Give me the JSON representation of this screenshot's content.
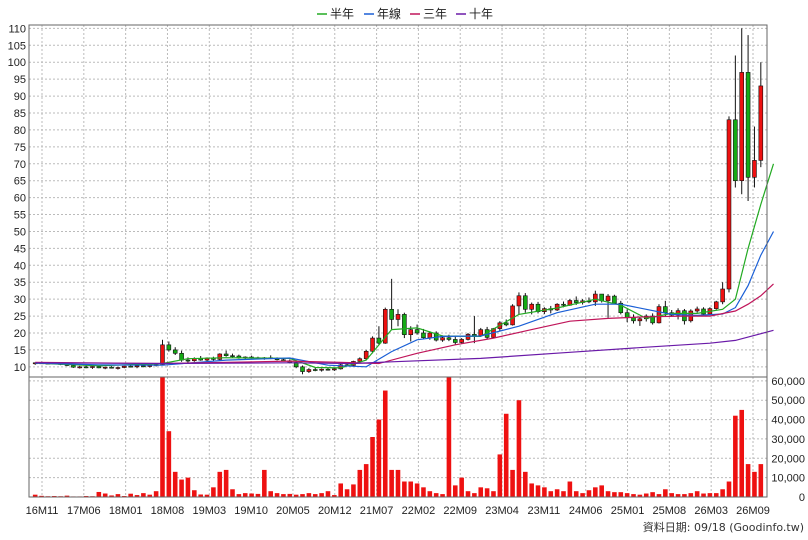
{
  "chart_data": {
    "type": "candlestick",
    "title": "",
    "legend": [
      "半年",
      "年線",
      "三年",
      "十年"
    ],
    "colors": {
      "half_year": "#22aa22",
      "year_line": "#1a5fd6",
      "three_year": "#c0155a",
      "ten_year": "#6a1aa8",
      "up": "#ee1111",
      "down": "#15aa15",
      "volume": "#ee1111",
      "grid": "#bbbbbb"
    },
    "x_ticks": [
      "16M11",
      "17M06",
      "18M01",
      "18M08",
      "19M03",
      "19M10",
      "20M05",
      "20M12",
      "21M07",
      "22M02",
      "22M09",
      "23M04",
      "23M11",
      "24M06",
      "25M01",
      "25M08",
      "26M03",
      "26M09"
    ],
    "price_axis": {
      "ticks": [
        10,
        15,
        20,
        25,
        30,
        35,
        40,
        45,
        50,
        55,
        60,
        65,
        70,
        75,
        80,
        85,
        90,
        95,
        100,
        105,
        110
      ],
      "range": [
        7,
        111
      ]
    },
    "volume_axis": {
      "ticks": [
        0,
        10000,
        20000,
        30000,
        40000,
        50000,
        60000
      ],
      "labels": [
        "0",
        "10,000",
        "20,000",
        "30,000",
        "40,000",
        "50,000",
        "60,000"
      ],
      "range": [
        0,
        62000
      ]
    },
    "candles": [
      [
        11.0,
        11.3,
        10.6,
        11.2
      ],
      [
        11.2,
        11.5,
        10.9,
        11.0
      ],
      [
        11.0,
        11.3,
        10.7,
        11.1
      ],
      [
        11.1,
        11.4,
        10.8,
        10.9
      ],
      [
        10.9,
        11.2,
        10.5,
        11.0
      ],
      [
        11.0,
        11.2,
        10.2,
        10.4
      ],
      [
        10.4,
        10.7,
        9.7,
        9.9
      ],
      [
        9.9,
        10.3,
        9.5,
        10.0
      ],
      [
        10.0,
        10.4,
        9.6,
        9.8
      ],
      [
        9.8,
        10.2,
        9.4,
        10.1
      ],
      [
        10.1,
        10.4,
        9.6,
        9.7
      ],
      [
        9.7,
        10.0,
        9.3,
        9.9
      ],
      [
        9.9,
        10.2,
        9.5,
        9.6
      ],
      [
        9.6,
        10.0,
        9.2,
        9.8
      ],
      [
        9.8,
        10.3,
        9.6,
        10.2
      ],
      [
        10.2,
        10.5,
        9.8,
        10.0
      ],
      [
        10.0,
        10.4,
        9.6,
        10.3
      ],
      [
        10.3,
        10.6,
        9.9,
        10.1
      ],
      [
        10.1,
        10.5,
        9.8,
        10.4
      ],
      [
        10.4,
        10.9,
        10.1,
        10.7
      ],
      [
        10.7,
        18.0,
        10.5,
        16.5
      ],
      [
        16.5,
        17.5,
        14.5,
        15.0
      ],
      [
        15.0,
        15.8,
        13.5,
        14.0
      ],
      [
        14.0,
        14.8,
        11.5,
        12.0
      ],
      [
        12.0,
        12.8,
        11.2,
        11.8
      ],
      [
        11.8,
        12.8,
        11.5,
        12.5
      ],
      [
        12.5,
        13.2,
        11.8,
        12.0
      ],
      [
        12.0,
        12.8,
        11.5,
        12.6
      ],
      [
        12.6,
        13.0,
        11.8,
        12.2
      ],
      [
        12.2,
        14.0,
        12.0,
        13.8
      ],
      [
        13.8,
        14.8,
        13.0,
        13.3
      ],
      [
        13.3,
        13.9,
        12.7,
        13.2
      ],
      [
        13.2,
        13.6,
        12.4,
        12.6
      ],
      [
        12.6,
        13.1,
        12.2,
        12.9
      ],
      [
        12.9,
        13.3,
        12.4,
        12.7
      ],
      [
        12.7,
        13.0,
        12.2,
        12.5
      ],
      [
        12.5,
        12.9,
        12.1,
        12.7
      ],
      [
        12.7,
        13.4,
        12.3,
        12.4
      ],
      [
        12.4,
        12.8,
        11.9,
        12.1
      ],
      [
        12.1,
        12.5,
        11.6,
        11.8
      ],
      [
        11.8,
        12.2,
        11.0,
        11.3
      ],
      [
        11.3,
        11.6,
        9.6,
        10.0
      ],
      [
        10.0,
        10.4,
        7.8,
        8.6
      ],
      [
        8.6,
        9.6,
        8.2,
        9.2
      ],
      [
        9.2,
        9.7,
        8.7,
        9.0
      ],
      [
        9.0,
        9.5,
        8.6,
        9.3
      ],
      [
        9.3,
        9.7,
        8.9,
        9.1
      ],
      [
        9.1,
        9.6,
        8.8,
        9.4
      ],
      [
        9.4,
        11.0,
        9.2,
        10.6
      ],
      [
        10.6,
        11.4,
        10.1,
        10.4
      ],
      [
        10.4,
        11.8,
        10.2,
        11.6
      ],
      [
        11.6,
        12.8,
        11.2,
        12.4
      ],
      [
        12.4,
        15.0,
        12.0,
        14.6
      ],
      [
        14.6,
        19.0,
        14.0,
        18.5
      ],
      [
        18.5,
        22.0,
        16.5,
        17.0
      ],
      [
        17.0,
        27.5,
        16.8,
        27.0
      ],
      [
        27.0,
        36.0,
        21.0,
        24.0
      ],
      [
        24.0,
        27.0,
        22.0,
        25.5
      ],
      [
        25.5,
        26.0,
        18.5,
        19.5
      ],
      [
        19.5,
        22.0,
        17.5,
        21.0
      ],
      [
        21.0,
        22.5,
        19.5,
        20.0
      ],
      [
        20.0,
        21.2,
        18.2,
        18.6
      ],
      [
        18.6,
        20.5,
        18.0,
        20.0
      ],
      [
        20.0,
        20.5,
        17.5,
        17.9
      ],
      [
        17.9,
        19.3,
        17.4,
        18.6
      ],
      [
        18.6,
        19.5,
        17.6,
        18.1
      ],
      [
        18.1,
        19.0,
        16.6,
        17.2
      ],
      [
        17.2,
        18.5,
        16.9,
        18.1
      ],
      [
        18.1,
        20.0,
        17.8,
        19.6
      ],
      [
        19.6,
        25.0,
        17.0,
        19.2
      ],
      [
        19.2,
        21.5,
        19.0,
        21.0
      ],
      [
        21.0,
        21.8,
        18.2,
        18.7
      ],
      [
        18.7,
        21.5,
        18.5,
        21.3
      ],
      [
        21.3,
        23.5,
        20.5,
        23.0
      ],
      [
        23.0,
        24.0,
        22.0,
        22.4
      ],
      [
        22.4,
        28.5,
        22.2,
        28.0
      ],
      [
        28.0,
        32.0,
        25.5,
        31.0
      ],
      [
        31.0,
        31.8,
        26.0,
        27.0
      ],
      [
        27.0,
        29.0,
        25.5,
        28.5
      ],
      [
        28.5,
        29.2,
        25.8,
        26.3
      ],
      [
        26.3,
        27.6,
        25.6,
        27.2
      ],
      [
        27.2,
        28.0,
        25.8,
        26.8
      ],
      [
        26.8,
        28.8,
        26.5,
        28.5
      ],
      [
        28.5,
        29.3,
        27.6,
        28.2
      ],
      [
        28.2,
        30.0,
        28.0,
        29.6
      ],
      [
        29.6,
        30.8,
        28.3,
        29.0
      ],
      [
        29.0,
        30.0,
        28.4,
        29.5
      ],
      [
        29.5,
        30.5,
        28.8,
        29.2
      ],
      [
        29.2,
        32.5,
        28.0,
        31.5
      ],
      [
        31.5,
        31.5,
        29.0,
        29.5
      ],
      [
        29.5,
        31.5,
        24.5,
        30.9
      ],
      [
        30.9,
        31.3,
        28.5,
        28.8
      ],
      [
        28.8,
        29.5,
        25.5,
        26.0
      ],
      [
        26.0,
        27.0,
        23.2,
        24.6
      ],
      [
        24.6,
        25.5,
        22.8,
        23.6
      ],
      [
        23.6,
        24.7,
        22.1,
        24.2
      ],
      [
        24.2,
        25.5,
        23.4,
        25.0
      ],
      [
        25.0,
        25.8,
        22.5,
        23.0
      ],
      [
        23.0,
        28.5,
        22.8,
        27.8
      ],
      [
        27.8,
        29.5,
        25.0,
        26.0
      ],
      [
        26.0,
        26.8,
        24.8,
        25.3
      ],
      [
        25.3,
        27.3,
        24.0,
        26.6
      ],
      [
        26.6,
        27.1,
        22.5,
        23.6
      ],
      [
        23.6,
        27.0,
        23.1,
        26.5
      ],
      [
        26.5,
        27.8,
        26.0,
        27.1
      ],
      [
        27.1,
        27.6,
        25.0,
        25.6
      ],
      [
        25.6,
        27.6,
        25.3,
        27.2
      ],
      [
        27.2,
        29.5,
        26.9,
        29.2
      ],
      [
        29.2,
        35.0,
        28.5,
        33.0
      ],
      [
        33.0,
        84.0,
        32.0,
        83.0
      ],
      [
        83.0,
        102.0,
        63.0,
        65.0
      ],
      [
        65.0,
        110.0,
        61.0,
        97.0
      ],
      [
        97.0,
        108.0,
        59.0,
        66.0
      ],
      [
        66.0,
        81.0,
        63.0,
        71.0
      ],
      [
        71.0,
        100.0,
        69.0,
        93.0
      ]
    ],
    "volumes": [
      1200,
      600,
      400,
      500,
      400,
      700,
      300,
      300,
      500,
      400,
      2600,
      1800,
      800,
      1500,
      500,
      1700,
      1000,
      2000,
      1200,
      3000,
      62000,
      34000,
      13000,
      9000,
      10000,
      3500,
      1300,
      1200,
      5000,
      13000,
      14000,
      4000,
      1500,
      2000,
      1800,
      1600,
      14000,
      3000,
      2000,
      1500,
      1600,
      1200,
      1500,
      2000,
      1500,
      2000,
      3000,
      1000,
      7000,
      4000,
      6500,
      14000,
      17000,
      31000,
      40000,
      55000,
      14000,
      14000,
      8000,
      8000,
      7000,
      5000,
      3000,
      2000,
      1500,
      62000,
      6000,
      10000,
      3000,
      2000,
      5000,
      4500,
      3000,
      22000,
      43000,
      14000,
      50000,
      13000,
      7000,
      6000,
      5000,
      3000,
      4000,
      3000,
      8000,
      3000,
      2000,
      3500,
      5000,
      6000,
      3000,
      2500,
      2500,
      2000,
      1500,
      1200,
      1800,
      2500,
      1500,
      4000,
      2000,
      1500,
      1500,
      2000,
      3000,
      1800,
      2000,
      2000,
      4000,
      8000,
      42000,
      45000,
      17000,
      13000,
      17000
    ],
    "ma": {
      "half_year": [
        [
          0,
          11.1
        ],
        [
          10,
          10.3
        ],
        [
          20,
          11.0
        ],
        [
          24,
          12.4
        ],
        [
          30,
          12.7
        ],
        [
          40,
          12.5
        ],
        [
          44,
          9.8
        ],
        [
          48,
          9.7
        ],
        [
          52,
          12.0
        ],
        [
          56,
          21.0
        ],
        [
          60,
          21.5
        ],
        [
          64,
          19.1
        ],
        [
          70,
          19.0
        ],
        [
          76,
          25.5
        ],
        [
          82,
          27.4
        ],
        [
          88,
          30.0
        ],
        [
          92,
          28.2
        ],
        [
          96,
          24.3
        ],
        [
          100,
          25.8
        ],
        [
          104,
          25.8
        ],
        [
          108,
          27.0
        ],
        [
          110,
          30.0
        ],
        [
          112,
          45.0
        ],
        [
          114,
          58.0
        ],
        [
          116,
          70.0
        ]
      ],
      "year_line": [
        [
          0,
          11.1
        ],
        [
          10,
          10.6
        ],
        [
          20,
          10.5
        ],
        [
          30,
          12.0
        ],
        [
          40,
          12.6
        ],
        [
          46,
          10.5
        ],
        [
          52,
          10.0
        ],
        [
          56,
          14.5
        ],
        [
          60,
          18.0
        ],
        [
          64,
          19.0
        ],
        [
          70,
          19.1
        ],
        [
          76,
          22.0
        ],
        [
          82,
          26.0
        ],
        [
          88,
          28.5
        ],
        [
          92,
          28.5
        ],
        [
          96,
          27.0
        ],
        [
          100,
          25.5
        ],
        [
          104,
          25.2
        ],
        [
          108,
          25.6
        ],
        [
          110,
          27.5
        ],
        [
          112,
          34.0
        ],
        [
          114,
          43.0
        ],
        [
          116,
          50.0
        ]
      ],
      "three_year": [
        [
          0,
          11.3
        ],
        [
          20,
          11.0
        ],
        [
          30,
          11.3
        ],
        [
          40,
          11.7
        ],
        [
          48,
          11.3
        ],
        [
          54,
          11.0
        ],
        [
          60,
          14.0
        ],
        [
          66,
          16.5
        ],
        [
          72,
          18.5
        ],
        [
          78,
          21.0
        ],
        [
          84,
          23.5
        ],
        [
          90,
          24.3
        ],
        [
          96,
          24.8
        ],
        [
          102,
          25.0
        ],
        [
          106,
          25.0
        ],
        [
          110,
          26.5
        ],
        [
          112,
          28.5
        ],
        [
          114,
          31.0
        ],
        [
          116,
          34.5
        ]
      ],
      "ten_year": [
        [
          0,
          11.2
        ],
        [
          20,
          11.0
        ],
        [
          40,
          11.2
        ],
        [
          50,
          11.0
        ],
        [
          56,
          11.5
        ],
        [
          70,
          12.5
        ],
        [
          84,
          14.3
        ],
        [
          96,
          15.8
        ],
        [
          106,
          17.0
        ],
        [
          110,
          17.8
        ],
        [
          112,
          18.8
        ],
        [
          116,
          20.8
        ]
      ]
    },
    "footer": "資料日期: 09/18 (Goodinfo.tw)"
  }
}
